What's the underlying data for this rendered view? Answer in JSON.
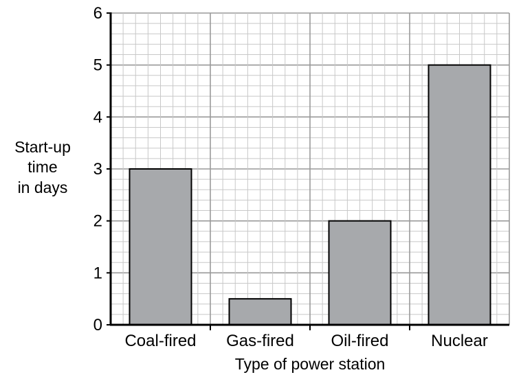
{
  "chart_data": {
    "type": "bar",
    "categories": [
      "Coal-fired",
      "Gas-fired",
      "Oil-fired",
      "Nuclear"
    ],
    "values": [
      3,
      0.5,
      2,
      5
    ],
    "xlabel": "Type of power station",
    "ylabel_lines": [
      "Start-up",
      "time",
      "in days"
    ],
    "ylim": [
      0,
      6
    ],
    "yticks": [
      0,
      1,
      2,
      3,
      4,
      5,
      6
    ],
    "grid": true,
    "colors": {
      "bar_fill": "#a7a9ac",
      "bar_stroke": "#000000",
      "grid_major": "#999999",
      "grid_minor": "#c8c8c8",
      "axis": "#000000"
    }
  }
}
